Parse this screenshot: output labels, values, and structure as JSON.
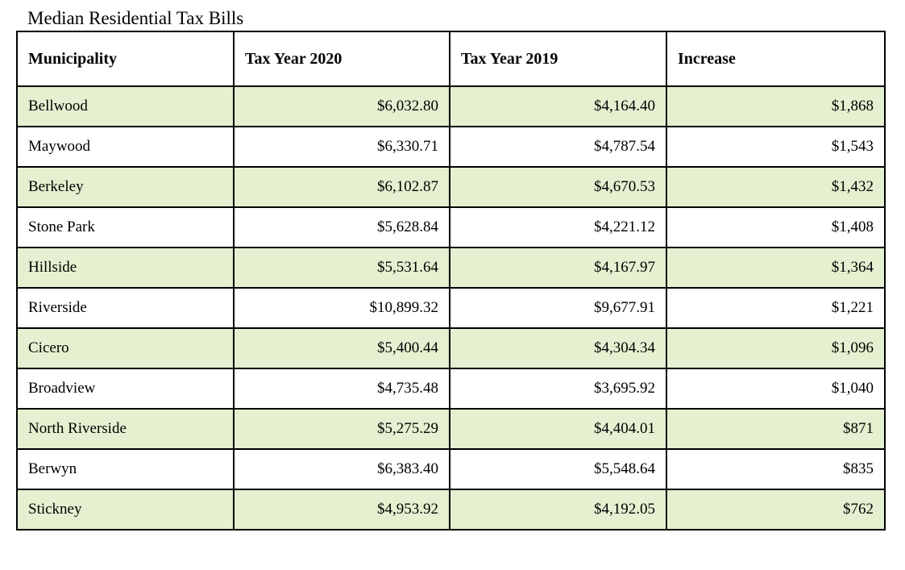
{
  "title": "Median Residential Tax Bills",
  "colors": {
    "shaded_row": "#e4f0d0",
    "plain_row": "#ffffff",
    "border": "#000000"
  },
  "table": {
    "headers": [
      "Municipality",
      "Tax Year 2020",
      "Tax Year 2019",
      "Increase"
    ],
    "rows": [
      {
        "municipality": "Bellwood",
        "tax_2020": "$6,032.80",
        "tax_2019": "$4,164.40",
        "increase": "$1,868",
        "shaded": true
      },
      {
        "municipality": "Maywood",
        "tax_2020": "$6,330.71",
        "tax_2019": "$4,787.54",
        "increase": "$1,543",
        "shaded": false
      },
      {
        "municipality": "Berkeley",
        "tax_2020": "$6,102.87",
        "tax_2019": "$4,670.53",
        "increase": "$1,432",
        "shaded": true
      },
      {
        "municipality": "Stone Park",
        "tax_2020": "$5,628.84",
        "tax_2019": "$4,221.12",
        "increase": "$1,408",
        "shaded": false
      },
      {
        "municipality": "Hillside",
        "tax_2020": "$5,531.64",
        "tax_2019": "$4,167.97",
        "increase": "$1,364",
        "shaded": true
      },
      {
        "municipality": "Riverside",
        "tax_2020": "$10,899.32",
        "tax_2019": "$9,677.91",
        "increase": "$1,221",
        "shaded": false
      },
      {
        "municipality": "Cicero",
        "tax_2020": "$5,400.44",
        "tax_2019": "$4,304.34",
        "increase": "$1,096",
        "shaded": true
      },
      {
        "municipality": "Broadview",
        "tax_2020": "$4,735.48",
        "tax_2019": "$3,695.92",
        "increase": "$1,040",
        "shaded": false
      },
      {
        "municipality": "North Riverside",
        "tax_2020": "$5,275.29",
        "tax_2019": "$4,404.01",
        "increase": "$871",
        "shaded": true
      },
      {
        "municipality": "Berwyn",
        "tax_2020": "$6,383.40",
        "tax_2019": "$5,548.64",
        "increase": "$835",
        "shaded": false
      },
      {
        "municipality": "Stickney",
        "tax_2020": "$4,953.92",
        "tax_2019": "$4,192.05",
        "increase": "$762",
        "shaded": true
      }
    ]
  }
}
